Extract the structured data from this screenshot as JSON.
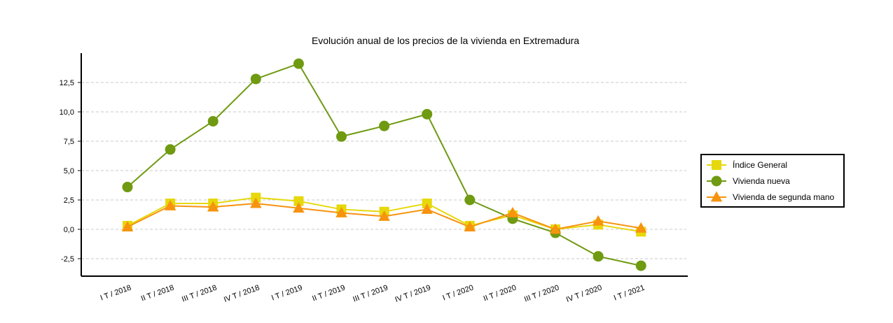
{
  "chart_data": {
    "type": "line",
    "title": "Evolución anual de los precios de la vivienda en Extremadura",
    "xlabel": "",
    "ylabel": "",
    "categories": [
      "I T / 2018",
      "II T / 2018",
      "III T / 2018",
      "IV T / 2018",
      "I T / 2019",
      "II T / 2019",
      "III T / 2019",
      "IV T / 2019",
      "I T / 2020",
      "II T / 2020",
      "III T / 2020",
      "IV T / 2020",
      "I T / 2021"
    ],
    "ylim": [
      -4,
      15
    ],
    "yticks": [
      -2.5,
      0,
      2.5,
      5,
      7.5,
      10,
      12.5
    ],
    "ytick_labels": [
      "-2,5",
      "0,0",
      "2,5",
      "5,0",
      "7,5",
      "10,0",
      "12,5"
    ],
    "grid": true,
    "legend_position": "right",
    "series": [
      {
        "name": "Índice General",
        "marker": "square",
        "color": "#e6d80a",
        "values": [
          0.3,
          2.2,
          2.2,
          2.7,
          2.4,
          1.7,
          1.5,
          2.2,
          0.3,
          1.2,
          0.0,
          0.4,
          -0.2
        ]
      },
      {
        "name": "Vivienda nueva",
        "marker": "circle",
        "color": "#6f9a11",
        "values": [
          3.6,
          6.8,
          9.2,
          12.8,
          14.1,
          7.9,
          8.8,
          9.8,
          2.5,
          0.9,
          -0.3,
          -2.3,
          -3.1
        ]
      },
      {
        "name": "Vivienda de segunda mano",
        "marker": "triangle",
        "color": "#f7930e",
        "values": [
          0.2,
          2.0,
          1.9,
          2.2,
          1.8,
          1.4,
          1.1,
          1.7,
          0.2,
          1.4,
          0.0,
          0.7,
          0.1
        ]
      }
    ]
  }
}
